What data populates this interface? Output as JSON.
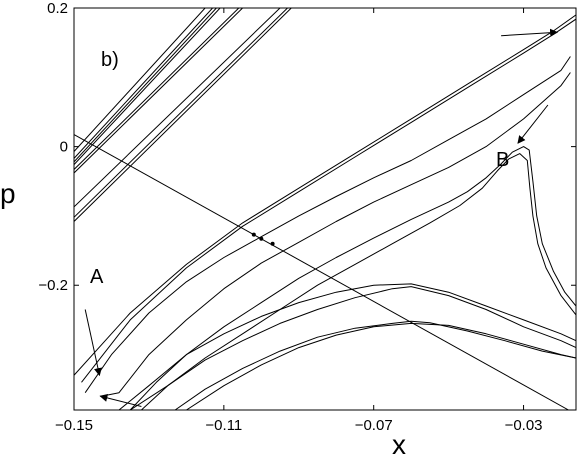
{
  "chart_data": {
    "type": "line",
    "xlabel": "x",
    "ylabel": "p",
    "xlim": [
      -0.15,
      -0.016
    ],
    "ylim": [
      -0.38,
      0.2
    ],
    "xticks": [
      -0.15,
      -0.11,
      -0.07,
      -0.03
    ],
    "xtick_labels": [
      "−0.15",
      "−0.11",
      "−0.07",
      "−0.03"
    ],
    "yticks": [
      -0.2,
      0,
      0.2
    ],
    "ytick_labels": [
      "−0.2",
      "0",
      "0.2"
    ],
    "grid": false,
    "annotations": {
      "panel": "b)",
      "label_a": "A",
      "label_b": "B"
    },
    "series": [
      {
        "style": "line",
        "points": [
          [
            -0.15,
            -0.007
          ],
          [
            -0.115,
            0.2
          ]
        ]
      },
      {
        "style": "line",
        "points": [
          [
            -0.15,
            -0.017
          ],
          [
            -0.113,
            0.2
          ]
        ]
      },
      {
        "style": "line",
        "points": [
          [
            -0.15,
            -0.022
          ],
          [
            -0.112,
            0.2
          ]
        ]
      },
      {
        "style": "line",
        "points": [
          [
            -0.15,
            -0.026
          ],
          [
            -0.111,
            0.2
          ]
        ]
      },
      {
        "style": "line",
        "points": [
          [
            -0.15,
            -0.033
          ],
          [
            -0.106,
            0.2
          ]
        ]
      },
      {
        "style": "line",
        "points": [
          [
            -0.15,
            -0.038
          ],
          [
            -0.105,
            0.2
          ]
        ]
      },
      {
        "style": "line",
        "points": [
          [
            -0.15,
            -0.087
          ],
          [
            -0.095,
            0.2
          ]
        ]
      },
      {
        "style": "line",
        "points": [
          [
            -0.15,
            -0.102
          ],
          [
            -0.093,
            0.2
          ]
        ]
      },
      {
        "style": "line",
        "points": [
          [
            -0.15,
            -0.108
          ],
          [
            -0.092,
            0.2
          ]
        ]
      },
      {
        "style": "curve",
        "points": [
          [
            -0.15,
            -0.33
          ],
          [
            -0.135,
            -0.24
          ],
          [
            -0.12,
            -0.17
          ],
          [
            -0.105,
            -0.11
          ],
          [
            -0.09,
            -0.06
          ],
          [
            -0.075,
            -0.01
          ],
          [
            -0.06,
            0.04
          ],
          [
            -0.045,
            0.09
          ],
          [
            -0.03,
            0.14
          ],
          [
            -0.022,
            0.167
          ],
          [
            -0.016,
            0.19
          ]
        ]
      },
      {
        "style": "curve",
        "points": [
          [
            -0.148,
            -0.34
          ],
          [
            -0.135,
            -0.25
          ],
          [
            -0.12,
            -0.175
          ],
          [
            -0.105,
            -0.115
          ],
          [
            -0.09,
            -0.065
          ],
          [
            -0.075,
            -0.015
          ],
          [
            -0.06,
            0.035
          ],
          [
            -0.045,
            0.085
          ],
          [
            -0.03,
            0.135
          ],
          [
            -0.022,
            0.162
          ],
          [
            -0.016,
            0.184
          ]
        ]
      },
      {
        "style": "curve",
        "points": [
          [
            -0.147,
            -0.355
          ],
          [
            -0.14,
            -0.3
          ],
          [
            -0.13,
            -0.24
          ],
          [
            -0.12,
            -0.195
          ],
          [
            -0.11,
            -0.16
          ],
          [
            -0.1,
            -0.13
          ],
          [
            -0.09,
            -0.1
          ],
          [
            -0.08,
            -0.072
          ],
          [
            -0.07,
            -0.045
          ],
          [
            -0.06,
            -0.02
          ],
          [
            -0.05,
            0.01
          ],
          [
            -0.04,
            0.04
          ],
          [
            -0.03,
            0.075
          ],
          [
            -0.02,
            0.11
          ],
          [
            -0.0175,
            0.13
          ]
        ]
      },
      {
        "style": "curve",
        "points": [
          [
            -0.1425,
            -0.36
          ],
          [
            -0.138,
            -0.355
          ],
          [
            -0.13,
            -0.3
          ],
          [
            -0.12,
            -0.25
          ],
          [
            -0.11,
            -0.205
          ],
          [
            -0.1,
            -0.168
          ],
          [
            -0.09,
            -0.138
          ],
          [
            -0.08,
            -0.108
          ],
          [
            -0.07,
            -0.08
          ],
          [
            -0.06,
            -0.055
          ],
          [
            -0.05,
            -0.03
          ],
          [
            -0.04,
            0.0
          ],
          [
            -0.03,
            0.04
          ],
          [
            -0.02,
            0.088
          ],
          [
            -0.0175,
            0.107
          ]
        ]
      },
      {
        "style": "curve",
        "points": [
          [
            -0.135,
            -0.38
          ],
          [
            -0.128,
            -0.34
          ],
          [
            -0.12,
            -0.3
          ],
          [
            -0.11,
            -0.26
          ],
          [
            -0.1,
            -0.225
          ],
          [
            -0.09,
            -0.19
          ],
          [
            -0.08,
            -0.16
          ],
          [
            -0.07,
            -0.132
          ],
          [
            -0.06,
            -0.105
          ],
          [
            -0.05,
            -0.08
          ],
          [
            -0.045,
            -0.065
          ],
          [
            -0.04,
            -0.045
          ],
          [
            -0.036,
            -0.025
          ],
          [
            -0.033,
            -0.008
          ],
          [
            -0.03,
            0.0
          ],
          [
            -0.0285,
            -0.005
          ],
          [
            -0.0275,
            -0.05
          ],
          [
            -0.0265,
            -0.1
          ],
          [
            -0.025,
            -0.14
          ],
          [
            -0.022,
            -0.18
          ],
          [
            -0.019,
            -0.21
          ],
          [
            -0.016,
            -0.23
          ]
        ]
      },
      {
        "style": "curve",
        "points": [
          [
            -0.132,
            -0.38
          ],
          [
            -0.125,
            -0.345
          ],
          [
            -0.115,
            -0.305
          ],
          [
            -0.105,
            -0.27
          ],
          [
            -0.095,
            -0.235
          ],
          [
            -0.085,
            -0.2
          ],
          [
            -0.075,
            -0.17
          ],
          [
            -0.065,
            -0.14
          ],
          [
            -0.055,
            -0.11
          ],
          [
            -0.047,
            -0.085
          ],
          [
            -0.041,
            -0.06
          ],
          [
            -0.037,
            -0.035
          ],
          [
            -0.034,
            -0.018
          ],
          [
            -0.031,
            -0.01
          ],
          [
            -0.029,
            -0.02
          ],
          [
            -0.0283,
            -0.06
          ],
          [
            -0.0275,
            -0.1
          ],
          [
            -0.0262,
            -0.14
          ],
          [
            -0.024,
            -0.175
          ],
          [
            -0.02,
            -0.215
          ],
          [
            -0.016,
            -0.243
          ]
        ]
      },
      {
        "style": "curve",
        "points": [
          [
            -0.138,
            -0.38
          ],
          [
            -0.13,
            -0.345
          ],
          [
            -0.12,
            -0.3
          ],
          [
            -0.11,
            -0.27
          ],
          [
            -0.1,
            -0.245
          ],
          [
            -0.09,
            -0.225
          ],
          [
            -0.08,
            -0.21
          ],
          [
            -0.07,
            -0.2
          ],
          [
            -0.06,
            -0.198
          ],
          [
            -0.05,
            -0.21
          ],
          [
            -0.04,
            -0.23
          ],
          [
            -0.03,
            -0.25
          ],
          [
            -0.02,
            -0.27
          ],
          [
            -0.016,
            -0.28
          ]
        ]
      },
      {
        "style": "curve",
        "points": [
          [
            -0.135,
            -0.38
          ],
          [
            -0.125,
            -0.345
          ],
          [
            -0.115,
            -0.308
          ],
          [
            -0.105,
            -0.28
          ],
          [
            -0.095,
            -0.255
          ],
          [
            -0.085,
            -0.235
          ],
          [
            -0.075,
            -0.218
          ],
          [
            -0.065,
            -0.205
          ],
          [
            -0.06,
            -0.202
          ],
          [
            -0.05,
            -0.215
          ],
          [
            -0.04,
            -0.235
          ],
          [
            -0.03,
            -0.26
          ],
          [
            -0.02,
            -0.28
          ],
          [
            -0.016,
            -0.29
          ]
        ]
      },
      {
        "style": "curve",
        "points": [
          [
            -0.123,
            -0.38
          ],
          [
            -0.115,
            -0.35
          ],
          [
            -0.105,
            -0.32
          ],
          [
            -0.095,
            -0.295
          ],
          [
            -0.085,
            -0.275
          ],
          [
            -0.075,
            -0.262
          ],
          [
            -0.065,
            -0.255
          ],
          [
            -0.06,
            -0.252
          ],
          [
            -0.055,
            -0.254
          ],
          [
            -0.045,
            -0.266
          ],
          [
            -0.035,
            -0.28
          ],
          [
            -0.025,
            -0.295
          ],
          [
            -0.016,
            -0.305
          ]
        ]
      },
      {
        "style": "curve",
        "points": [
          [
            -0.12,
            -0.38
          ],
          [
            -0.11,
            -0.345
          ],
          [
            -0.1,
            -0.315
          ],
          [
            -0.09,
            -0.29
          ],
          [
            -0.08,
            -0.272
          ],
          [
            -0.07,
            -0.26
          ],
          [
            -0.06,
            -0.255
          ],
          [
            -0.05,
            -0.258
          ],
          [
            -0.04,
            -0.27
          ],
          [
            -0.03,
            -0.285
          ],
          [
            -0.02,
            -0.3
          ],
          [
            -0.016,
            -0.305
          ]
        ]
      },
      {
        "style": "line",
        "points": [
          [
            -0.15,
            0.0175
          ],
          [
            -0.018,
            -0.38
          ]
        ]
      },
      {
        "style": "dots",
        "points": [
          [
            -0.102,
            -0.127
          ],
          [
            -0.1,
            -0.133
          ],
          [
            -0.097,
            -0.14
          ]
        ]
      },
      {
        "style": "arrow",
        "points": [
          [
            -0.147,
            -0.235
          ],
          [
            -0.1432,
            -0.33
          ]
        ]
      },
      {
        "style": "arrow",
        "points": [
          [
            -0.132,
            -0.375
          ],
          [
            -0.143,
            -0.36
          ]
        ]
      },
      {
        "style": "arrow",
        "points": [
          [
            -0.0235,
            0.06
          ],
          [
            -0.0315,
            0.005
          ]
        ]
      },
      {
        "style": "arrow",
        "points": [
          [
            -0.036,
            0.16
          ],
          [
            -0.021,
            0.165
          ]
        ]
      }
    ]
  }
}
